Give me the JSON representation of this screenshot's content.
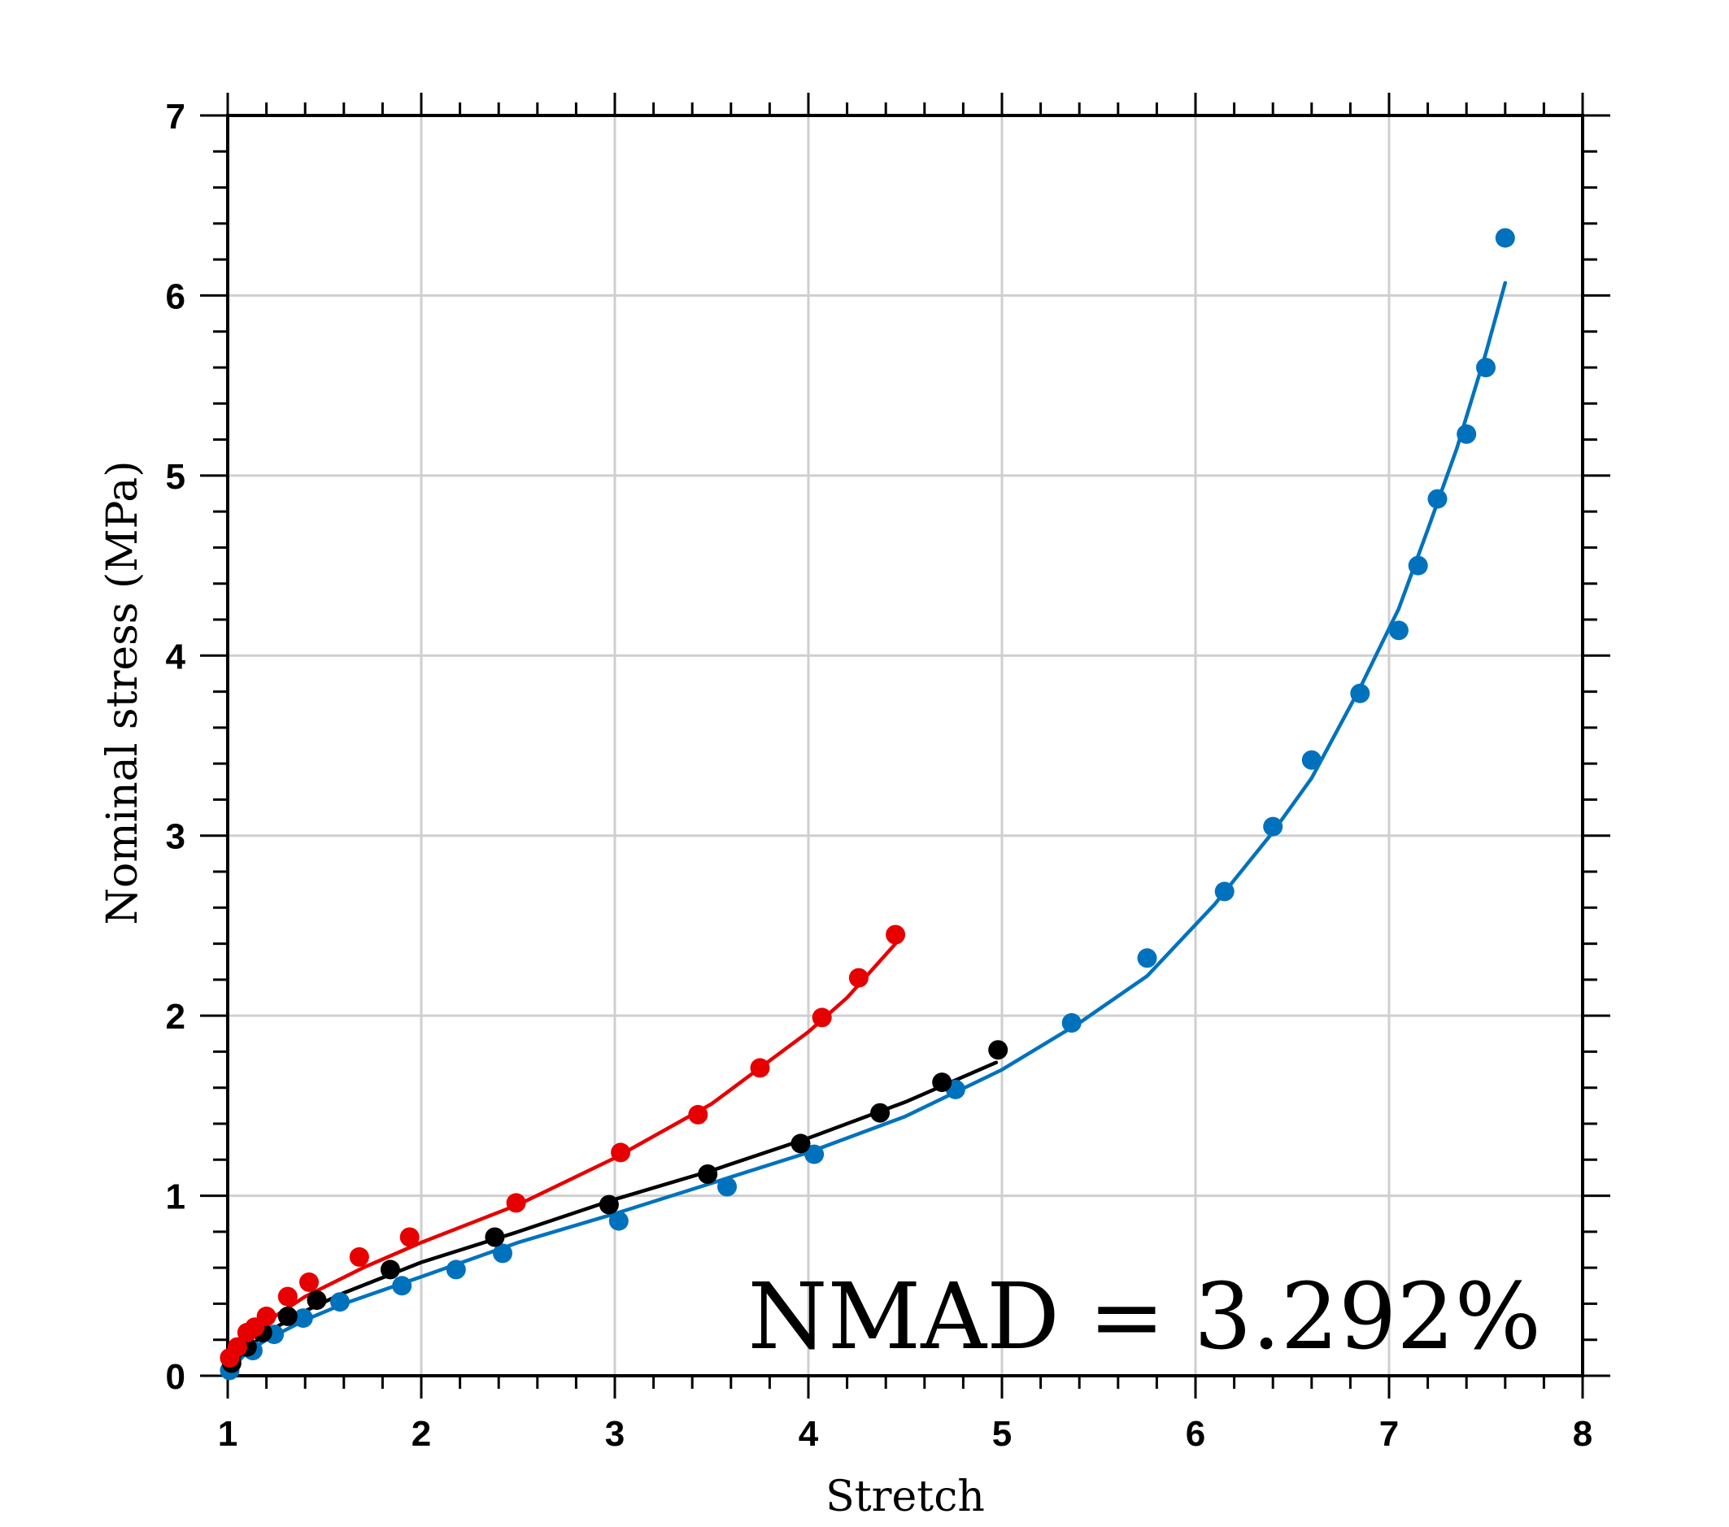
{
  "chart_data": {
    "type": "scatter",
    "xlabel": "Stretch",
    "ylabel": "Nominal stress (MPa)",
    "xlim": [
      1,
      8
    ],
    "ylim": [
      0,
      7
    ],
    "x_ticks": [
      1,
      2,
      3,
      4,
      5,
      6,
      7,
      8
    ],
    "y_ticks": [
      0,
      1,
      2,
      3,
      4,
      5,
      6,
      7
    ],
    "grid": true,
    "legend": "none",
    "annotation": "NMAD = 3.292%",
    "series": [
      {
        "color": "#0072BD",
        "points": {
          "x": [
            1.01,
            1.13,
            1.24,
            1.39,
            1.58,
            1.9,
            2.18,
            2.42,
            3.02,
            3.58,
            4.03,
            4.76,
            5.36,
            5.75,
            6.15,
            6.4,
            6.6,
            6.85,
            7.05,
            7.15,
            7.25,
            7.4,
            7.5,
            7.6
          ],
          "y": [
            0.03,
            0.14,
            0.23,
            0.32,
            0.41,
            0.5,
            0.59,
            0.68,
            0.86,
            1.05,
            1.23,
            1.59,
            1.96,
            2.32,
            2.69,
            3.05,
            3.42,
            3.79,
            4.14,
            4.5,
            4.87,
            5.23,
            5.6,
            6.32
          ]
        },
        "fit": {
          "x": [
            1.0,
            1.1,
            1.2,
            1.4,
            1.6,
            2.0,
            2.5,
            3.0,
            3.5,
            4.0,
            4.5,
            5.0,
            5.4,
            5.75,
            6.1,
            6.4,
            6.6,
            6.85,
            7.05,
            7.2,
            7.35,
            7.5,
            7.6
          ],
          "y": [
            0.02,
            0.13,
            0.2,
            0.31,
            0.4,
            0.55,
            0.74,
            0.9,
            1.07,
            1.24,
            1.44,
            1.7,
            1.96,
            2.22,
            2.62,
            3.02,
            3.32,
            3.82,
            4.26,
            4.7,
            5.15,
            5.68,
            6.07
          ]
        }
      },
      {
        "color": "#000000",
        "points": {
          "x": [
            1.02,
            1.1,
            1.18,
            1.31,
            1.46,
            1.84,
            2.38,
            2.97,
            3.48,
            3.96,
            4.37,
            4.69,
            4.98
          ],
          "y": [
            0.07,
            0.16,
            0.24,
            0.33,
            0.42,
            0.59,
            0.77,
            0.95,
            1.12,
            1.29,
            1.46,
            1.63,
            1.81
          ]
        },
        "fit": {
          "x": [
            1.0,
            1.1,
            1.2,
            1.4,
            1.6,
            2.0,
            2.5,
            3.0,
            3.5,
            4.0,
            4.5,
            4.97
          ],
          "y": [
            0.04,
            0.15,
            0.24,
            0.36,
            0.46,
            0.63,
            0.8,
            0.98,
            1.14,
            1.32,
            1.52,
            1.74
          ]
        }
      },
      {
        "color": "#E60000",
        "points": {
          "x": [
            1.01,
            1.05,
            1.1,
            1.14,
            1.2,
            1.31,
            1.42,
            1.68,
            1.94,
            2.49,
            3.03,
            3.43,
            3.75,
            4.07,
            4.26,
            4.45
          ],
          "y": [
            0.1,
            0.16,
            0.24,
            0.27,
            0.33,
            0.44,
            0.52,
            0.66,
            0.77,
            0.96,
            1.24,
            1.45,
            1.71,
            1.99,
            2.21,
            2.45
          ]
        },
        "fit": {
          "x": [
            1.0,
            1.1,
            1.2,
            1.4,
            1.7,
            2.0,
            2.5,
            3.0,
            3.5,
            4.0,
            4.2,
            4.45
          ],
          "y": [
            0.07,
            0.2,
            0.3,
            0.44,
            0.6,
            0.74,
            0.95,
            1.21,
            1.51,
            1.91,
            2.1,
            2.4
          ]
        }
      }
    ]
  }
}
